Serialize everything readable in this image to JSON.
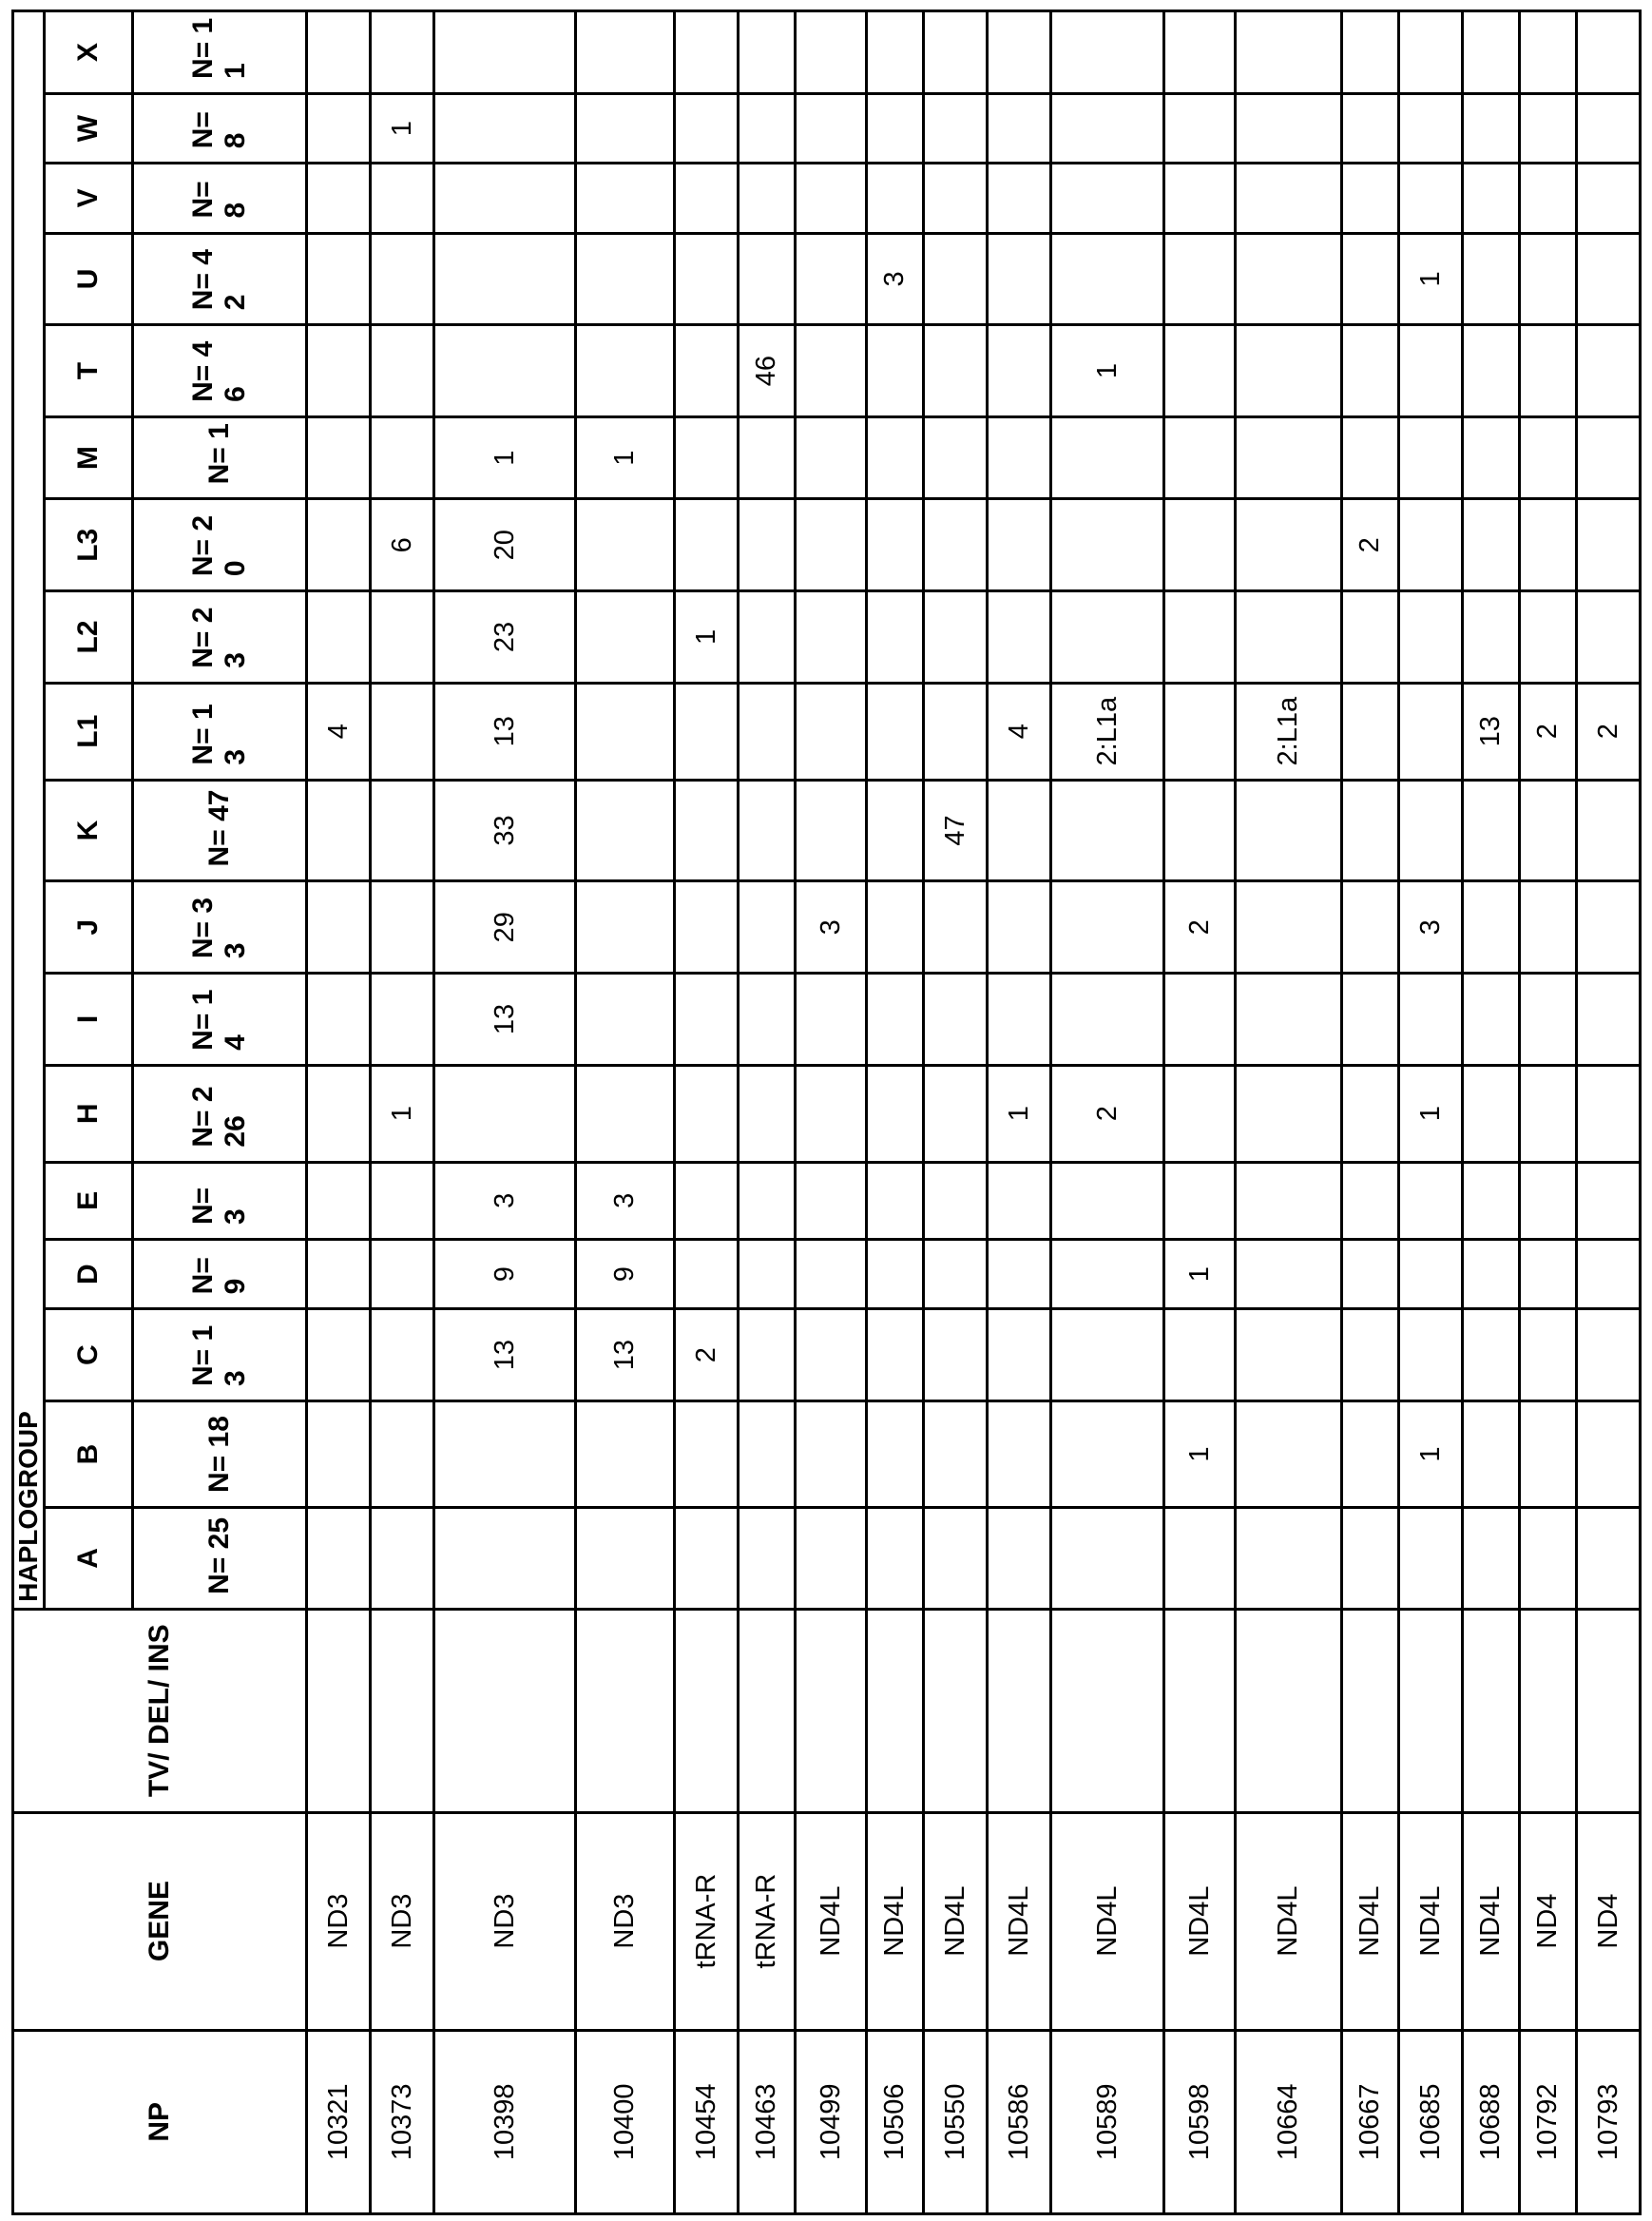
{
  "headers": {
    "np": "NP",
    "gene": "GENE",
    "tv": "TV/ DEL/ INS",
    "haplogroup": "HAPLOGROUP"
  },
  "haplogroups": [
    {
      "name": "A",
      "n": "N= 25"
    },
    {
      "name": "B",
      "n": "N= 18"
    },
    {
      "name": "C",
      "n": "N= 13"
    },
    {
      "name": "D",
      "n": "N= 9"
    },
    {
      "name": "E",
      "n": "N= 3"
    },
    {
      "name": "H",
      "n": "N= 226"
    },
    {
      "name": "I",
      "n": "N= 14"
    },
    {
      "name": "J",
      "n": "N= 33"
    },
    {
      "name": "K",
      "n": "N= 47"
    },
    {
      "name": "L1",
      "n": "N= 13"
    },
    {
      "name": "L2",
      "n": "N= 23"
    },
    {
      "name": "L3",
      "n": "N= 20"
    },
    {
      "name": "M",
      "n": "N= 1"
    },
    {
      "name": "T",
      "n": "N= 46"
    },
    {
      "name": "U",
      "n": "N= 42"
    },
    {
      "name": "V",
      "n": "N= 8"
    },
    {
      "name": "W",
      "n": "N= 8"
    },
    {
      "name": "X",
      "n": "N= 11"
    }
  ],
  "rows": [
    {
      "np": "10321",
      "gene": "ND3",
      "tv": "",
      "values": {
        "L1": "4"
      }
    },
    {
      "np": "10373",
      "gene": "ND3",
      "tv": "",
      "values": {
        "H": "1",
        "L3": "6",
        "W": "1"
      }
    },
    {
      "np": "10398",
      "gene": "ND3",
      "tv": "",
      "values": {
        "C": "13",
        "D": "9",
        "E": "3",
        "I": "13",
        "J": "29",
        "K": "33",
        "L1": "13",
        "L2": "23",
        "L3": "20",
        "M": "1"
      }
    },
    {
      "np": "10400",
      "gene": "ND3",
      "tv": "",
      "values": {
        "C": "13",
        "D": "9",
        "E": "3",
        "M": "1"
      }
    },
    {
      "np": "10454",
      "gene": "tRNA-R",
      "tv": "",
      "values": {
        "C": "2",
        "L2": "1"
      }
    },
    {
      "np": "10463",
      "gene": "tRNA-R",
      "tv": "",
      "values": {
        "T": "46"
      }
    },
    {
      "np": "10499",
      "gene": "ND4L",
      "tv": "",
      "values": {
        "J": "3"
      }
    },
    {
      "np": "10506",
      "gene": "ND4L",
      "tv": "",
      "values": {
        "U": "3"
      }
    },
    {
      "np": "10550",
      "gene": "ND4L",
      "tv": "",
      "values": {
        "K": "47"
      }
    },
    {
      "np": "10586",
      "gene": "ND4L",
      "tv": "",
      "values": {
        "H": "1",
        "L1": "4"
      }
    },
    {
      "np": "10589",
      "gene": "ND4L",
      "tv": "",
      "values": {
        "H": "2",
        "L1": "2:L1a",
        "T": "1"
      }
    },
    {
      "np": "10598",
      "gene": "ND4L",
      "tv": "",
      "values": {
        "B": "1",
        "D": "1",
        "J": "2"
      }
    },
    {
      "np": "10664",
      "gene": "ND4L",
      "tv": "",
      "values": {
        "L1": "2:L1a"
      }
    },
    {
      "np": "10667",
      "gene": "ND4L",
      "tv": "",
      "values": {
        "L3": "2"
      }
    },
    {
      "np": "10685",
      "gene": "ND4L",
      "tv": "",
      "values": {
        "B": "1",
        "H": "1",
        "J": "3",
        "U": "1"
      }
    },
    {
      "np": "10688",
      "gene": "ND4L",
      "tv": "",
      "values": {
        "L1": "13"
      }
    },
    {
      "np": "10792",
      "gene": "ND4",
      "tv": "",
      "values": {
        "L1": "2"
      }
    },
    {
      "np": "10793",
      "gene": "ND4",
      "tv": "",
      "values": {
        "L1": "2"
      }
    }
  ]
}
